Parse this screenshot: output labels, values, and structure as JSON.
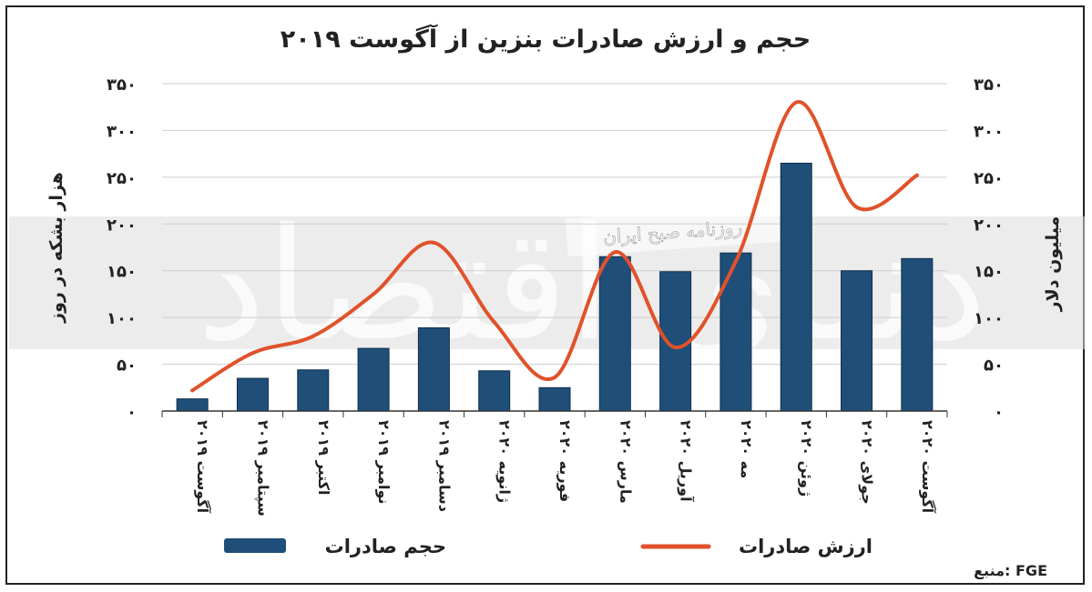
{
  "chart_data": {
    "type": "bar+line",
    "title": "حجم و ارزش صادرات بنزین از آگوست ۲۰۱۹",
    "ylabel_left": "هزار بشکه در روز",
    "ylabel_right": "میلیون دلار",
    "ylim": [
      0,
      350
    ],
    "y_ticks": [
      "۰",
      "۵۰",
      "۱۰۰",
      "۱۵۰",
      "۲۰۰",
      "۲۵۰",
      "۳۰۰",
      "۳۵۰"
    ],
    "grid": true,
    "categories": [
      "آگوست ۲۰۱۹",
      "سپتامبر ۲۰۱۹",
      "اکتبر ۲۰۱۹",
      "نوامبر ۲۰۱۹",
      "دسامبر ۲۰۱۹",
      "ژانویه ۲۰۲۰",
      "فوریه ۲۰۲۰",
      "مارس ۲۰۲۰",
      "آوریل ۲۰۲۰",
      "مه ۲۰۲۰",
      "ژوئن ۲۰۲۰",
      "جولای ۲۰۲۰",
      "آگوست ۲۰۲۰"
    ],
    "series": [
      {
        "name": "حجم صادرات",
        "kind": "bar",
        "color": "#1f4e79",
        "values": [
          13,
          35,
          44,
          67,
          89,
          43,
          25,
          165,
          149,
          169,
          265,
          150,
          163
        ]
      },
      {
        "name": "ارزش صادرات",
        "kind": "line",
        "color": "#e0522b",
        "values": [
          22,
          62,
          80,
          125,
          180,
          95,
          36,
          170,
          68,
          160,
          330,
          218,
          252
        ]
      }
    ],
    "legend_position": "bottom",
    "source": "منبع: FGE"
  },
  "watermark": {
    "banner_text": "روزنامه صبح ایران"
  }
}
